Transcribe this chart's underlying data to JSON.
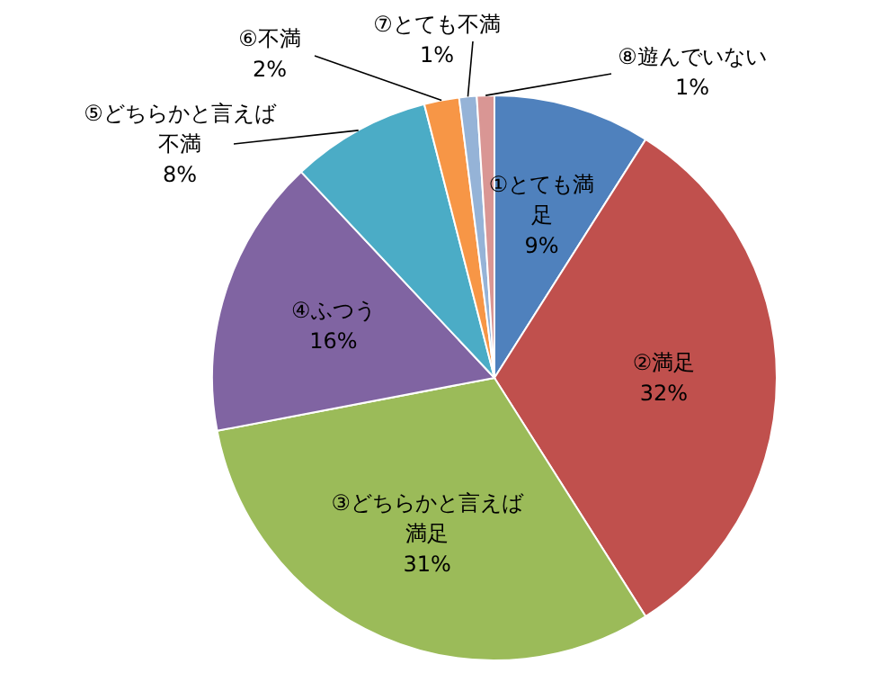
{
  "chart_data": {
    "type": "pie",
    "categories": [
      "①とても満足",
      "②満足",
      "③どちらかと言えば満足",
      "④ふつう",
      "⑤どちらかと言えば不満",
      "⑥不満",
      "⑦とても不満",
      "⑧遊んでいない"
    ],
    "values": [
      9,
      32,
      31,
      16,
      8,
      2,
      1,
      1
    ],
    "value_labels": [
      "9%",
      "32%",
      "31%",
      "16%",
      "8%",
      "2%",
      "1%",
      "1%"
    ],
    "colors": [
      "#4f81bd",
      "#c0504d",
      "#9bbb59",
      "#8064a2",
      "#4bacc6",
      "#f79646",
      "#95b3d7",
      "#d99694"
    ],
    "legend": false
  }
}
